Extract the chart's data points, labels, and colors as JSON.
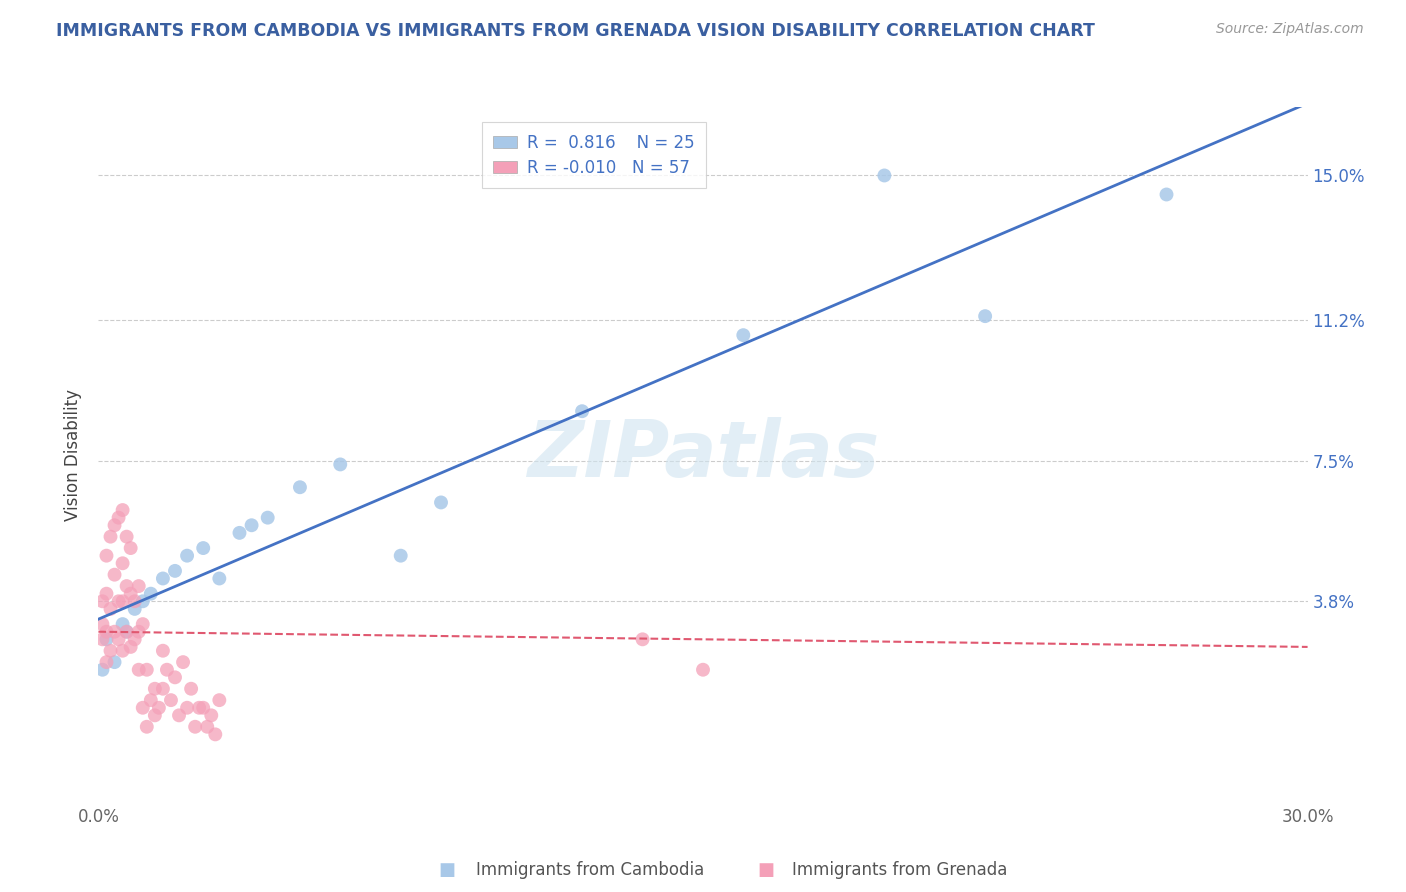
{
  "title": "IMMIGRANTS FROM CAMBODIA VS IMMIGRANTS FROM GRENADA VISION DISABILITY CORRELATION CHART",
  "source": "Source: ZipAtlas.com",
  "ylabel": "Vision Disability",
  "ytick_labels": [
    "3.8%",
    "7.5%",
    "11.2%",
    "15.0%"
  ],
  "ytick_values": [
    0.038,
    0.075,
    0.112,
    0.15
  ],
  "xlim": [
    0.0,
    0.3
  ],
  "ylim": [
    -0.015,
    0.168
  ],
  "r_cambodia": 0.816,
  "n_cambodia": 25,
  "r_grenada": -0.01,
  "n_grenada": 57,
  "color_cambodia": "#a8c8e8",
  "color_grenada": "#f4a0b8",
  "line_color_cambodia": "#4472c4",
  "line_color_grenada": "#e05870",
  "watermark": "ZIPatlas",
  "title_color": "#3a5fa0",
  "background_color": "#ffffff",
  "grid_color": "#cccccc",
  "legend_label1": "R =  0.816    N = 25",
  "legend_label2": "R = -0.010   N = 57",
  "bottom_label1": "Immigrants from Cambodia",
  "bottom_label2": "Immigrants from Grenada",
  "cambodia_x": [
    0.001,
    0.002,
    0.004,
    0.006,
    0.007,
    0.009,
    0.011,
    0.013,
    0.016,
    0.019,
    0.022,
    0.026,
    0.03,
    0.035,
    0.038,
    0.042,
    0.05,
    0.06,
    0.075,
    0.085,
    0.12,
    0.16,
    0.195,
    0.22,
    0.265
  ],
  "cambodia_y": [
    0.02,
    0.028,
    0.022,
    0.032,
    0.03,
    0.036,
    0.038,
    0.04,
    0.044,
    0.046,
    0.05,
    0.052,
    0.044,
    0.056,
    0.058,
    0.06,
    0.068,
    0.074,
    0.05,
    0.064,
    0.088,
    0.108,
    0.15,
    0.113,
    0.145
  ],
  "grenada_x": [
    0.001,
    0.001,
    0.001,
    0.002,
    0.002,
    0.002,
    0.002,
    0.003,
    0.003,
    0.003,
    0.004,
    0.004,
    0.004,
    0.005,
    0.005,
    0.005,
    0.006,
    0.006,
    0.006,
    0.006,
    0.007,
    0.007,
    0.007,
    0.008,
    0.008,
    0.008,
    0.009,
    0.009,
    0.01,
    0.01,
    0.01,
    0.011,
    0.011,
    0.012,
    0.012,
    0.013,
    0.014,
    0.014,
    0.015,
    0.016,
    0.016,
    0.017,
    0.018,
    0.019,
    0.02,
    0.021,
    0.022,
    0.023,
    0.024,
    0.025,
    0.026,
    0.027,
    0.028,
    0.029,
    0.03,
    0.135,
    0.15
  ],
  "grenada_y": [
    0.028,
    0.032,
    0.038,
    0.022,
    0.03,
    0.04,
    0.05,
    0.025,
    0.036,
    0.055,
    0.03,
    0.045,
    0.058,
    0.028,
    0.038,
    0.06,
    0.025,
    0.038,
    0.048,
    0.062,
    0.03,
    0.042,
    0.055,
    0.026,
    0.04,
    0.052,
    0.028,
    0.038,
    0.03,
    0.042,
    0.02,
    0.032,
    0.01,
    0.02,
    0.005,
    0.012,
    0.008,
    0.015,
    0.01,
    0.025,
    0.015,
    0.02,
    0.012,
    0.018,
    0.008,
    0.022,
    0.01,
    0.015,
    0.005,
    0.01,
    0.01,
    0.005,
    0.008,
    0.003,
    0.012,
    0.028,
    0.02
  ]
}
